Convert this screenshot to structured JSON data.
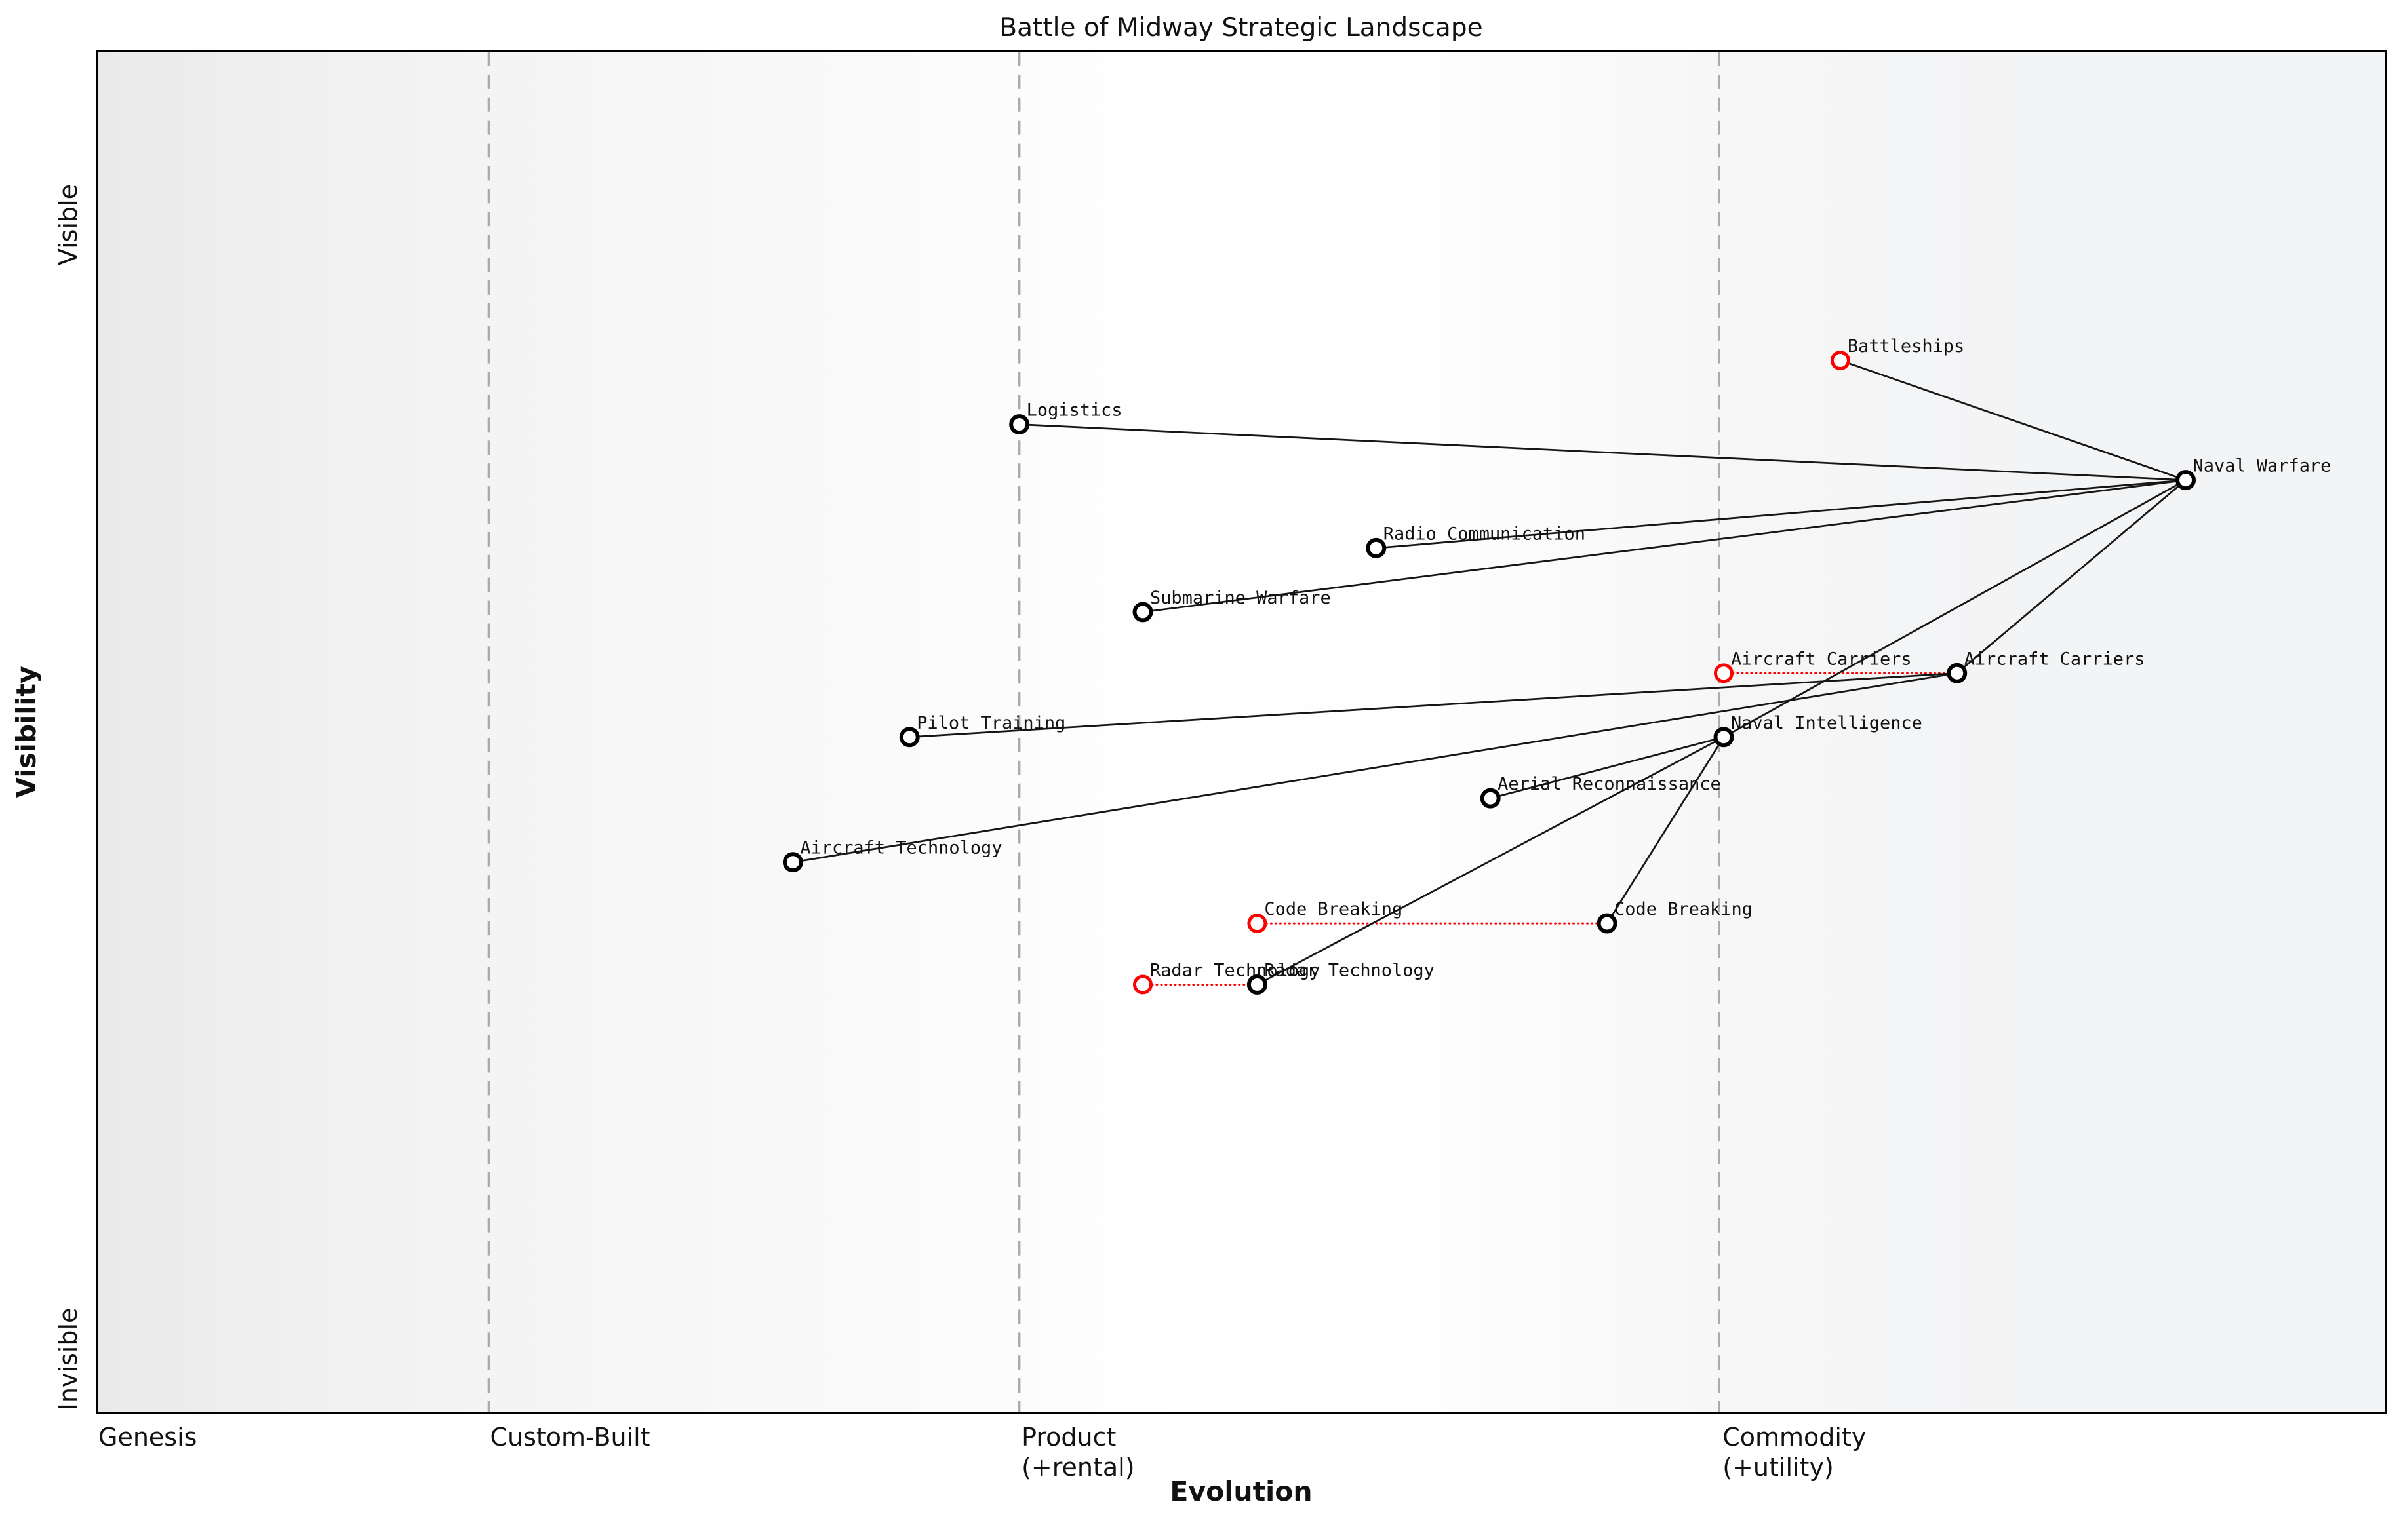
{
  "title": "Battle of Midway Strategic Landscape",
  "colors": {
    "component": "#000000",
    "evolved_source": "#ff0000",
    "edge": "#161616",
    "evolution_arrow": "#ff0000",
    "grid_dashed": "#ababab",
    "node_fill": "#ffffff",
    "label_text": "#111111"
  },
  "chart_data": {
    "type": "wardley-map",
    "title": "Battle of Midway Strategic Landscape",
    "x_axis": {
      "label": "Evolution",
      "range": [
        0,
        1
      ],
      "stages": [
        {
          "id": "genesis",
          "label": "Genesis",
          "sub": "",
          "start": 0.0
        },
        {
          "id": "custom-built",
          "label": "Custom-Built",
          "sub": "",
          "start": 0.171
        },
        {
          "id": "product",
          "label": "Product",
          "sub": "(+rental)",
          "start": 0.403
        },
        {
          "id": "commodity",
          "label": "Commodity",
          "sub": "(+utility)",
          "start": 0.709
        }
      ],
      "boundaries": [
        0.171,
        0.403,
        0.709
      ]
    },
    "y_axis": {
      "label": "Visibility",
      "range": [
        0,
        1
      ],
      "top_label": "Visible",
      "bottom_label": "Invisible"
    },
    "nodes": [
      {
        "id": "naval_warfare",
        "label": "Naval Warfare",
        "evolution": 0.913,
        "visibility": 0.685,
        "type": "component"
      },
      {
        "id": "battleships",
        "label": "Battleships",
        "evolution": 0.762,
        "visibility": 0.773,
        "type": "evolved_source"
      },
      {
        "id": "logistics",
        "label": "Logistics",
        "evolution": 0.403,
        "visibility": 0.726,
        "type": "component"
      },
      {
        "id": "radio_communication",
        "label": "Radio Communication",
        "evolution": 0.559,
        "visibility": 0.635,
        "type": "component"
      },
      {
        "id": "submarine_warfare",
        "label": "Submarine Warfare",
        "evolution": 0.457,
        "visibility": 0.588,
        "type": "component"
      },
      {
        "id": "aircraft_carriers_source",
        "label": "Aircraft Carriers",
        "evolution": 0.711,
        "visibility": 0.543,
        "type": "evolved_source"
      },
      {
        "id": "aircraft_carriers",
        "label": "Aircraft Carriers",
        "evolution": 0.813,
        "visibility": 0.543,
        "type": "component"
      },
      {
        "id": "pilot_training",
        "label": "Pilot Training",
        "evolution": 0.355,
        "visibility": 0.496,
        "type": "component"
      },
      {
        "id": "naval_intelligence",
        "label": "Naval Intelligence",
        "evolution": 0.711,
        "visibility": 0.496,
        "type": "component"
      },
      {
        "id": "aerial_reconnaissance",
        "label": "Aerial Reconnaissance",
        "evolution": 0.609,
        "visibility": 0.451,
        "type": "component"
      },
      {
        "id": "aircraft_technology",
        "label": "Aircraft Technology",
        "evolution": 0.304,
        "visibility": 0.404,
        "type": "component"
      },
      {
        "id": "code_breaking_source",
        "label": "Code Breaking",
        "evolution": 0.507,
        "visibility": 0.359,
        "type": "evolved_source"
      },
      {
        "id": "code_breaking",
        "label": "Code Breaking",
        "evolution": 0.66,
        "visibility": 0.359,
        "type": "component"
      },
      {
        "id": "radar_technology_source",
        "label": "Radar Technology",
        "evolution": 0.457,
        "visibility": 0.314,
        "type": "evolved_source"
      },
      {
        "id": "radar_technology",
        "label": "Radar Technology",
        "evolution": 0.507,
        "visibility": 0.314,
        "type": "component"
      }
    ],
    "edges": [
      {
        "from": "battleships",
        "to": "naval_warfare"
      },
      {
        "from": "logistics",
        "to": "naval_warfare"
      },
      {
        "from": "radio_communication",
        "to": "naval_warfare"
      },
      {
        "from": "submarine_warfare",
        "to": "naval_warfare"
      },
      {
        "from": "naval_intelligence",
        "to": "naval_warfare"
      },
      {
        "from": "aircraft_carriers",
        "to": "naval_warfare"
      },
      {
        "from": "pilot_training",
        "to": "aircraft_carriers"
      },
      {
        "from": "aircraft_technology",
        "to": "aircraft_carriers"
      },
      {
        "from": "aerial_reconnaissance",
        "to": "naval_intelligence"
      },
      {
        "from": "code_breaking",
        "to": "naval_intelligence"
      },
      {
        "from": "radar_technology",
        "to": "naval_intelligence"
      }
    ],
    "evolution_moves": [
      {
        "from": "aircraft_carriers_source",
        "to": "aircraft_carriers"
      },
      {
        "from": "code_breaking_source",
        "to": "code_breaking"
      },
      {
        "from": "radar_technology_source",
        "to": "radar_technology"
      }
    ],
    "legend": "none",
    "grid": "dashed-stage-boundaries"
  }
}
